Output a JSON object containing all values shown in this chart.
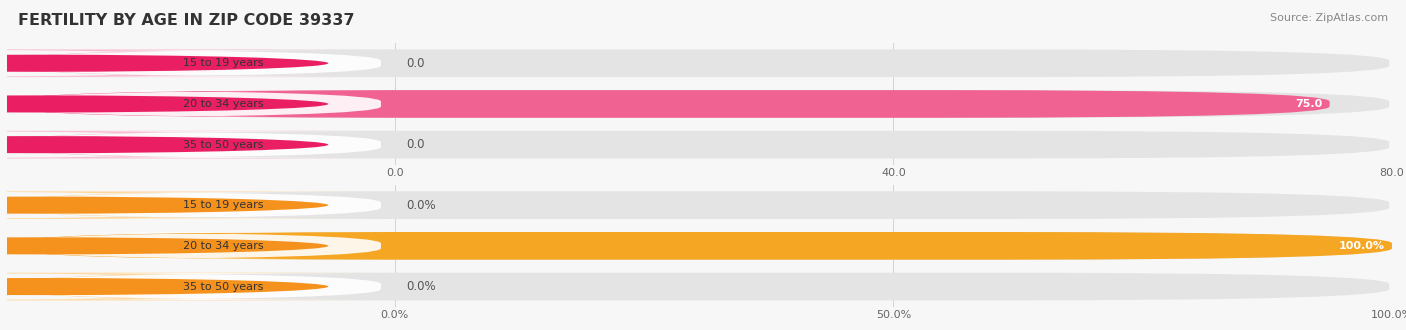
{
  "title": "Fertility by Age in Zip Code 39337",
  "title_display": "FERTILITY BY AGE IN ZIP CODE 39337",
  "source": "Source: ZipAtlas.com",
  "background_color": "#f7f7f7",
  "bar_bg_color": "#e4e4e4",
  "top_chart": {
    "categories": [
      "15 to 19 years",
      "20 to 34 years",
      "35 to 50 years"
    ],
    "values": [
      0.0,
      75.0,
      0.0
    ],
    "bar_color": "#f06292",
    "bar_light_color": "#f8bbd0",
    "circle_color": "#e91e63",
    "value_color_inside": "#ffffff",
    "value_color_outside": "#666666",
    "xlim": [
      0,
      80.0
    ],
    "xticks": [
      0.0,
      40.0,
      80.0
    ],
    "xtick_labels": [
      "0.0",
      "40.0",
      "80.0"
    ]
  },
  "bottom_chart": {
    "categories": [
      "15 to 19 years",
      "20 to 34 years",
      "35 to 50 years"
    ],
    "values": [
      0.0,
      100.0,
      0.0
    ],
    "bar_color": "#f5a623",
    "bar_light_color": "#ffd699",
    "circle_color": "#f5921e",
    "value_color_inside": "#ffffff",
    "value_color_outside": "#666666",
    "xlim": [
      0,
      100.0
    ],
    "xticks": [
      0.0,
      50.0,
      100.0
    ],
    "xtick_labels": [
      "0.0%",
      "50.0%",
      "100.0%"
    ]
  }
}
